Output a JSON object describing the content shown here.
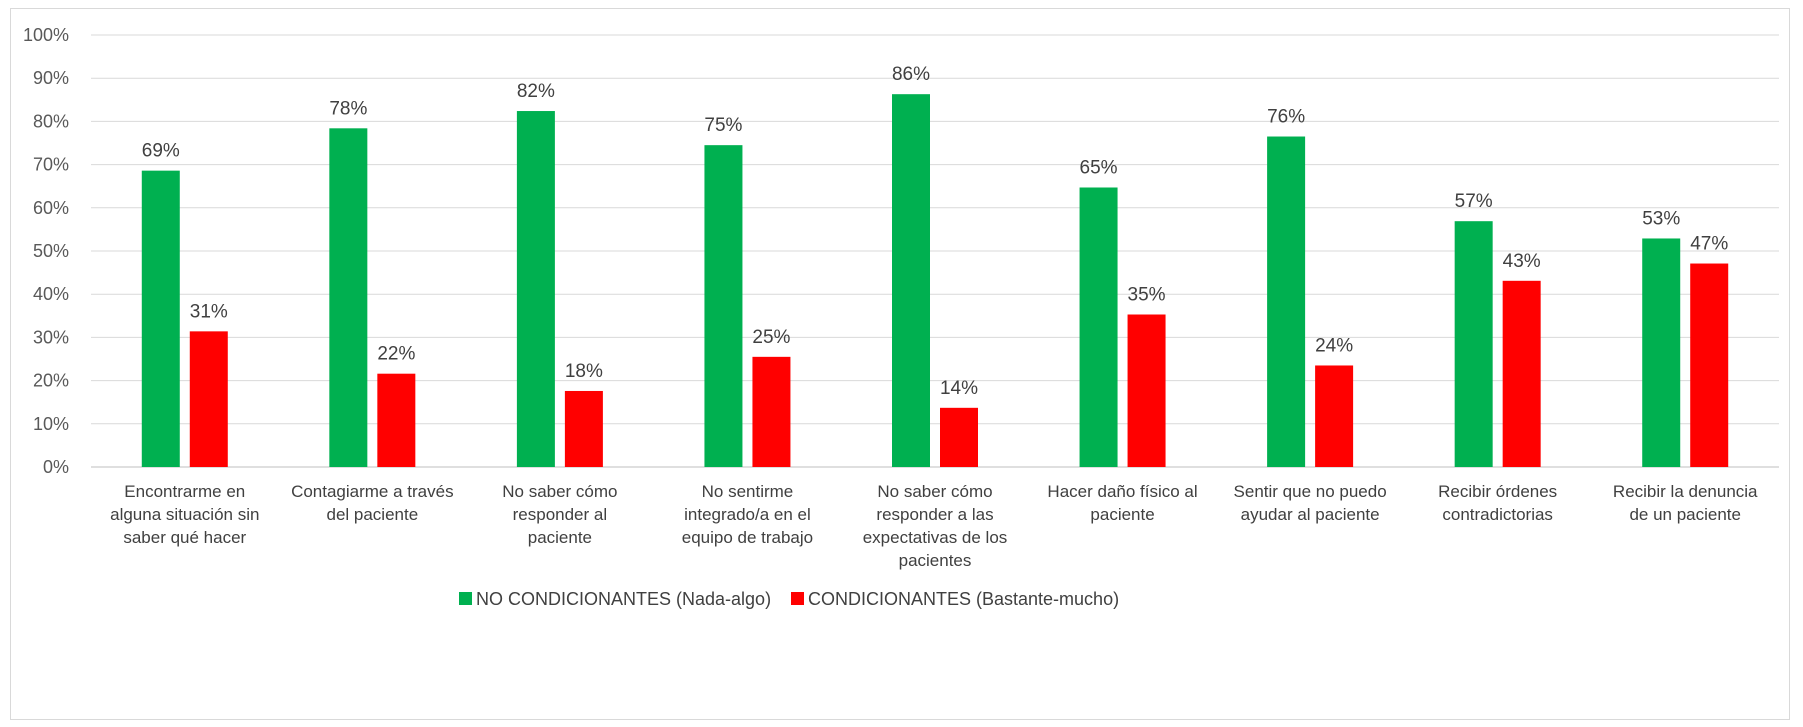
{
  "chart_data": {
    "type": "bar",
    "categories": [
      [
        "Encontrarme en",
        "alguna situación sin",
        "saber qué hacer"
      ],
      [
        "Contagiarme a través",
        "del paciente"
      ],
      [
        "No saber cómo",
        "responder al",
        "paciente"
      ],
      [
        "No sentirme",
        "integrado/a en el",
        "equipo de trabajo"
      ],
      [
        "No saber cómo",
        "responder a las",
        "expectativas de los",
        "pacientes"
      ],
      [
        "Hacer daño físico al",
        "paciente"
      ],
      [
        "Sentir que no puedo",
        "ayudar al paciente"
      ],
      [
        "Recibir órdenes",
        "contradictorias"
      ],
      [
        "Recibir la denuncia",
        "de un paciente"
      ]
    ],
    "series": [
      {
        "name": "NO CONDICIONANTES (Nada-algo)",
        "color": "#00b050",
        "values": [
          68.6,
          78.4,
          82.4,
          74.5,
          86.3,
          64.7,
          76.5,
          56.9,
          52.9
        ],
        "labels": [
          "69%",
          "78%",
          "82%",
          "75%",
          "86%",
          "65%",
          "76%",
          "57%",
          "53%"
        ]
      },
      {
        "name": "CONDICIONANTES (Bastante-mucho)",
        "color": "#ff0000",
        "values": [
          31.4,
          21.6,
          17.6,
          25.5,
          13.7,
          35.3,
          23.5,
          43.1,
          47.1
        ],
        "labels": [
          "31%",
          "22%",
          "18%",
          "25%",
          "14%",
          "35%",
          "24%",
          "43%",
          "47%"
        ]
      }
    ],
    "y_ticks": [
      "0%",
      "10%",
      "20%",
      "30%",
      "40%",
      "50%",
      "60%",
      "70%",
      "80%",
      "90%",
      "100%"
    ],
    "ylim": [
      0,
      100
    ],
    "grid": true,
    "legend_position": "bottom",
    "title": "",
    "xlabel": "",
    "ylabel": ""
  }
}
